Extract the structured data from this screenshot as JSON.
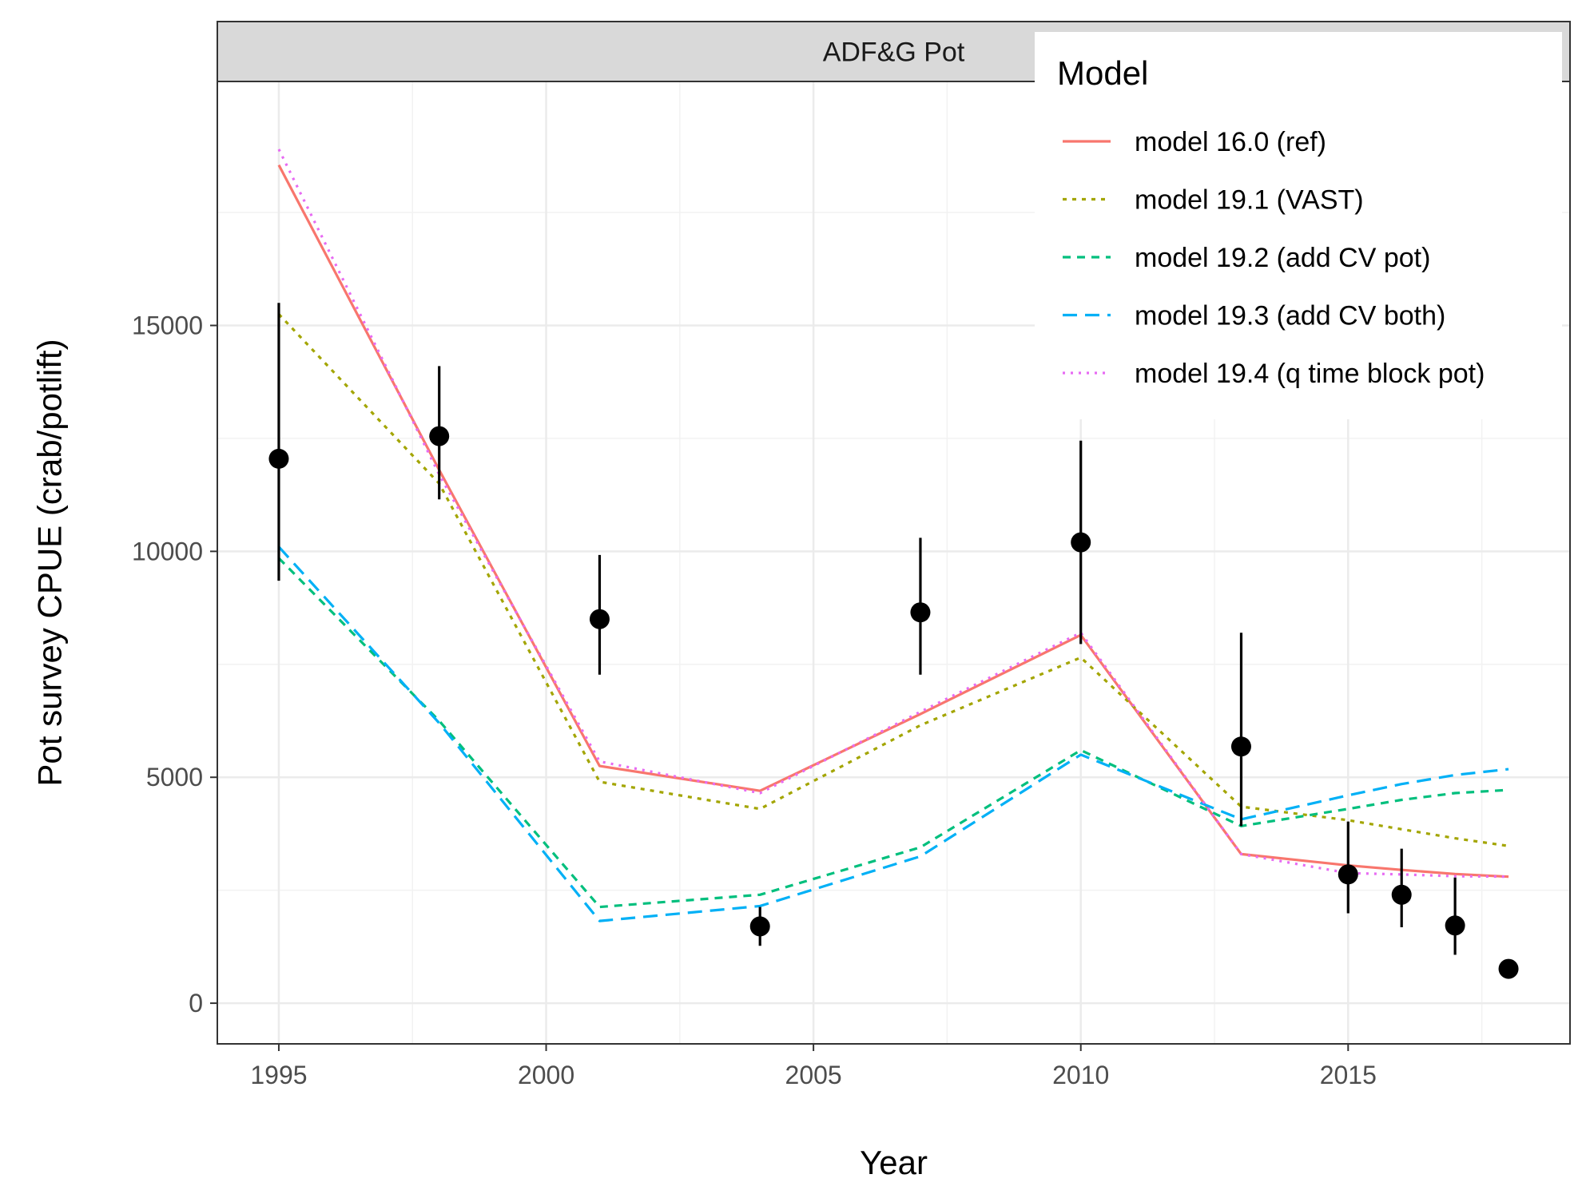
{
  "chart_data": {
    "type": "line",
    "panel_title": "ADF&G Pot",
    "xlabel": "Year",
    "ylabel": "Pot survey CPUE (crab/potlift)",
    "xlim": [
      1993.85,
      2019.15
    ],
    "ylim": [
      -900,
      20400
    ],
    "x_ticks": [
      1995,
      2000,
      2005,
      2010,
      2015
    ],
    "y_ticks": [
      0,
      5000,
      10000,
      15000
    ],
    "grid": true,
    "legend": {
      "title": "Model",
      "position": "top-right-inside"
    },
    "observed": {
      "x": [
        1995,
        1998,
        2001,
        2004,
        2007,
        2010,
        2013,
        2015,
        2016,
        2017,
        2018
      ],
      "y": [
        12050,
        12550,
        8500,
        1700,
        8650,
        10200,
        5680,
        2850,
        2400,
        1720,
        760
      ],
      "lower": [
        9350,
        11150,
        7270,
        1270,
        7270,
        7950,
        3920,
        1990,
        1680,
        1070,
        760
      ],
      "upper": [
        15500,
        14100,
        9920,
        2130,
        10300,
        12450,
        8200,
        4020,
        3420,
        2780,
        760
      ]
    },
    "years": [
      1995,
      1998,
      2001,
      2004,
      2007,
      2010,
      2013,
      2015,
      2016,
      2017,
      2018
    ],
    "series": [
      {
        "name": "model 16.0 (ref)",
        "color": "#F8766D",
        "dash": "solid",
        "values": [
          18550,
          11800,
          5250,
          4700,
          6400,
          8150,
          3300,
          3050,
          2950,
          2860,
          2800
        ]
      },
      {
        "name": "model 19.1 (VAST)",
        "color": "#A3A500",
        "dash": "dotted",
        "values": [
          15250,
          11500,
          4900,
          4300,
          6150,
          7650,
          4350,
          4050,
          3850,
          3650,
          3480
        ]
      },
      {
        "name": "model 19.2 (add CV pot)",
        "color": "#00BF7D",
        "dash": "dashed",
        "values": [
          9850,
          6250,
          2130,
          2400,
          3450,
          5600,
          3920,
          4300,
          4500,
          4650,
          4720
        ]
      },
      {
        "name": "model 19.3 (add CV both)",
        "color": "#00B0F6",
        "dash": "longdash",
        "values": [
          10100,
          6200,
          1820,
          2150,
          3250,
          5500,
          4070,
          4600,
          4850,
          5050,
          5180
        ]
      },
      {
        "name": "model 19.4 (q time block pot)",
        "color": "#E76BF3",
        "dash": "dotdense",
        "values": [
          18900,
          11700,
          5350,
          4650,
          6450,
          8200,
          3300,
          2880,
          2850,
          2810,
          2800
        ]
      }
    ]
  }
}
